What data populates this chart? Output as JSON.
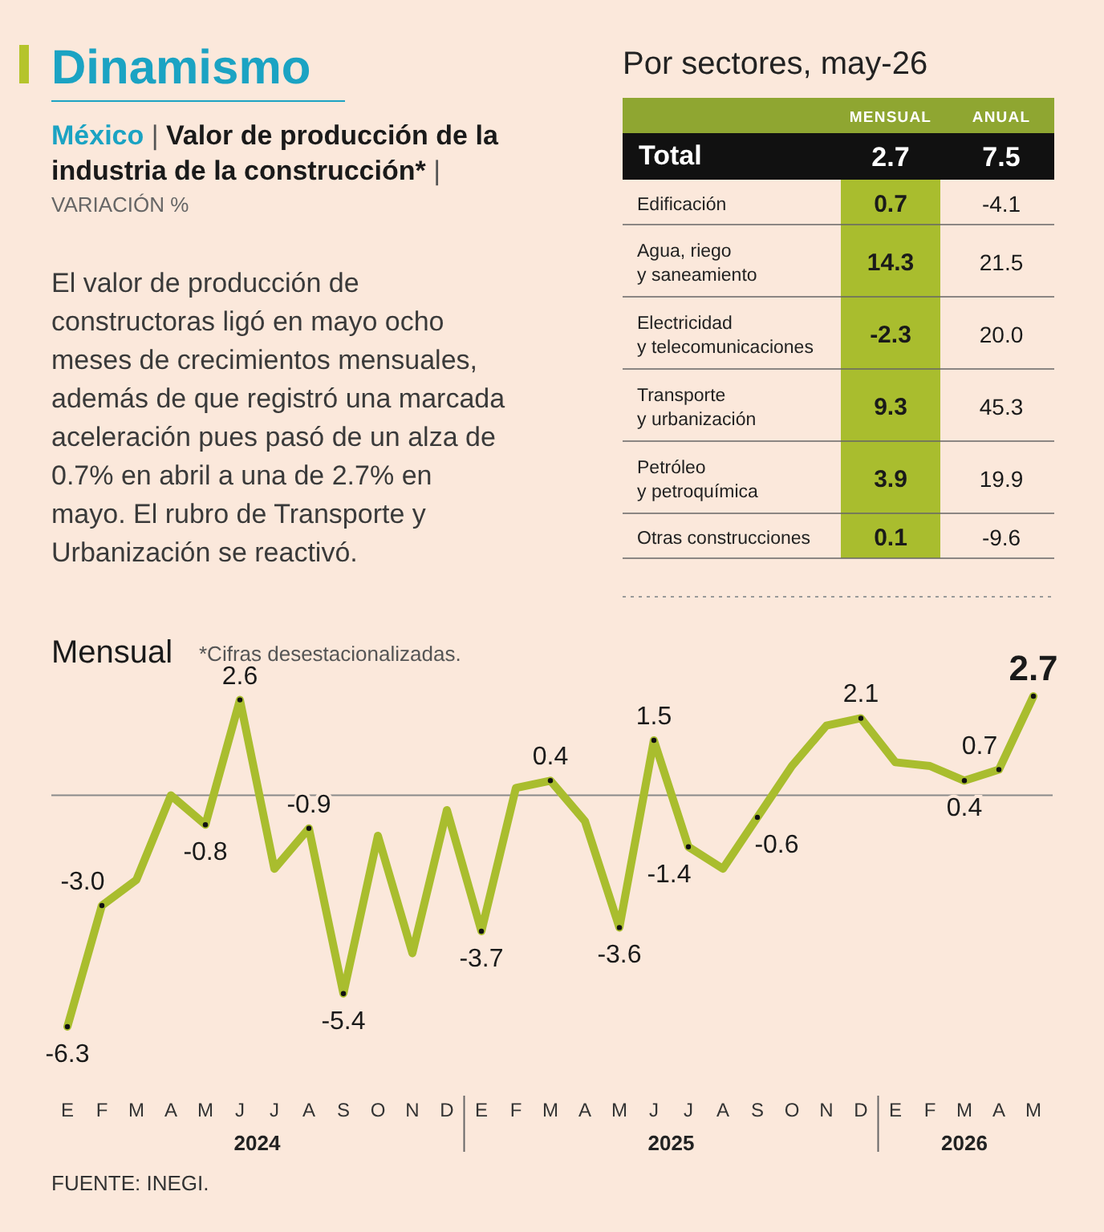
{
  "chart_data": [
    {
      "type": "line",
      "title": "Dinamismo",
      "subtitle": "México | Valor de producción de la industria de la construcción* | VARIACIÓN %",
      "annotations": [
        "El valor de producción de constructoras ligó en mayo ocho meses de crecimientos mensuales, además de que registró una marcada aceleración pues pasó de un alza de 0.7% en abril a una de 2.7% en mayo. El rubro de Transporte y Urbanización se reactivó.",
        "Mensual",
        "*Cifras desestacionalizadas.",
        "FUENTE:  INEGI.",
        "2024",
        "2025",
        "2026"
      ],
      "categories": [
        "E",
        "F",
        "M",
        "A",
        "M",
        "J",
        "J",
        "A",
        "S",
        "O",
        "N",
        "D",
        "E",
        "F",
        "M",
        "A",
        "M",
        "J",
        "J",
        "A",
        "S",
        "O",
        "N",
        "D",
        "E",
        "F",
        "M",
        "A",
        "M"
      ],
      "series": [
        {
          "color": "#a9bd2e",
          "values": [
            -6.3,
            -3.0,
            -2.3,
            0.0,
            -0.8,
            2.6,
            -2.0,
            -0.9,
            -5.4,
            -1.1,
            -4.3,
            -0.4,
            -3.7,
            0.2,
            0.4,
            -0.7,
            -3.6,
            1.5,
            -1.4,
            -2.0,
            -0.6,
            0.8,
            1.9,
            2.1,
            0.9,
            0.8,
            0.4,
            0.7,
            2.7
          ],
          "value_labels": [
            "-6.3",
            "-3.0",
            null,
            null,
            "-0.8",
            "2.6",
            null,
            "-0.9",
            "-5.4",
            null,
            null,
            null,
            "-3.7",
            null,
            "0.4",
            null,
            "-3.6",
            "1.5",
            "-1.4",
            null,
            "-0.6",
            null,
            null,
            "2.1",
            null,
            null,
            "0.4",
            "0.7",
            "2.7"
          ]
        }
      ],
      "ref_lines": [
        {
          "axis": "y",
          "value": 0,
          "color": "#8a8a8a"
        }
      ],
      "tick_labels": "x"
    },
    {
      "type": "other",
      "title": "Por sectores, may-26",
      "categories": [
        "Total",
        "Edificación",
        "Agua, riego\ny saneamiento",
        "Electricidad\ny telecomunicaciones",
        "Transporte\ny urbanización",
        "Petróleo\ny petroquímica",
        "Otras construcciones"
      ],
      "series": [
        {
          "name": "MENSUAL",
          "colors": [
            "#111111",
            "#a9bd2e",
            "#a9bd2e",
            "#a9bd2e",
            "#a9bd2e",
            "#a9bd2e",
            "#a9bd2e"
          ],
          "values": [
            2.7,
            0.7,
            14.3,
            -2.3,
            9.3,
            3.9,
            0.1
          ]
        },
        {
          "name": "ANUAL",
          "values": [
            7.5,
            -4.1,
            21.5,
            20.0,
            45.3,
            19.9,
            -9.6
          ],
          "value_labels": [
            "7.5",
            "-4.1",
            "21.5",
            "20.0",
            "45.3",
            "19.9",
            "-9.6"
          ]
        }
      ],
      "data_labels": true
    }
  ]
}
